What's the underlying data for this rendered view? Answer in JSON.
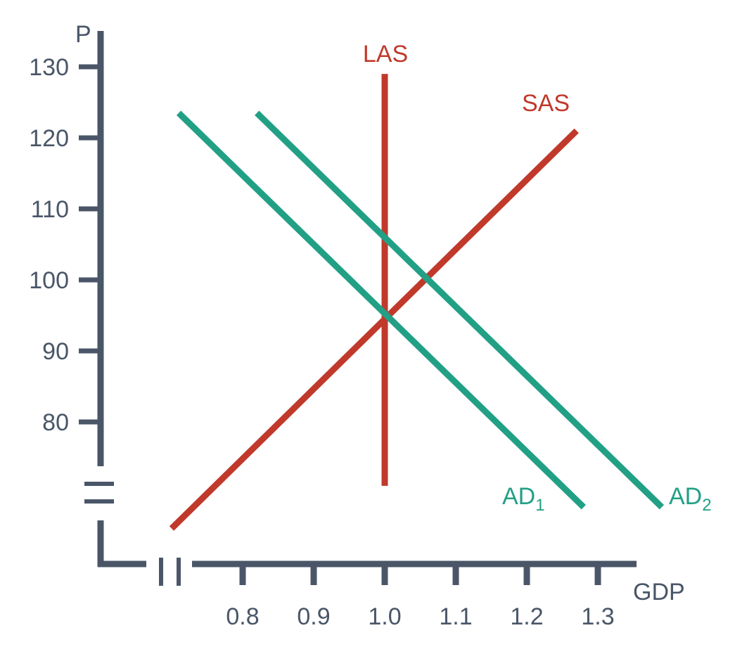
{
  "chart_data": {
    "type": "line",
    "title": "",
    "xlabel": "GDP",
    "ylabel": "P",
    "xlim": [
      0.8,
      1.3
    ],
    "ylim": [
      80,
      130
    ],
    "x_ticks": [
      "0.8",
      "0.9",
      "1.0",
      "1.1",
      "1.2",
      "1.3"
    ],
    "y_ticks": [
      "130",
      "120",
      "110",
      "100",
      "90",
      "80"
    ],
    "axis_breaks": true,
    "grid": false,
    "series": [
      {
        "name": "LAS",
        "color": "#c0392b",
        "points": [
          [
            1.0,
            71
          ],
          [
            1.0,
            129
          ]
        ]
      },
      {
        "name": "SAS",
        "color": "#c0392b",
        "points": [
          [
            0.7,
            65
          ],
          [
            1.27,
            121
          ]
        ]
      },
      {
        "name": "AD",
        "subscript": "1",
        "color": "#22a086",
        "points": [
          [
            0.71,
            123.5
          ],
          [
            1.28,
            68
          ]
        ]
      },
      {
        "name": "AD",
        "subscript": "2",
        "color": "#22a086",
        "points": [
          [
            0.82,
            123.5
          ],
          [
            1.39,
            68
          ]
        ]
      }
    ]
  }
}
